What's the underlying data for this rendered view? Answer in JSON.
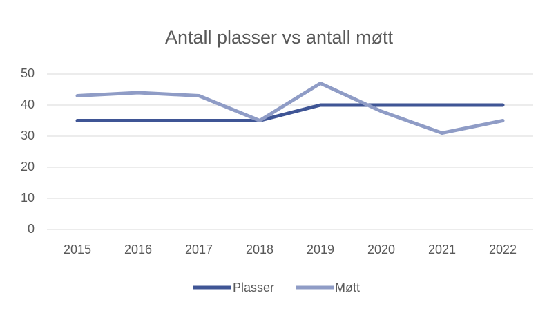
{
  "chart_data": {
    "type": "line",
    "title": "Antall plasser vs antall møtt",
    "categories": [
      "2015",
      "2016",
      "2017",
      "2018",
      "2019",
      "2020",
      "2021",
      "2022"
    ],
    "series": [
      {
        "name": "Plasser",
        "color": "#3f5595",
        "values": [
          35,
          35,
          35,
          35,
          40,
          40,
          40,
          40
        ]
      },
      {
        "name": "Møtt",
        "color": "#8f9cc6",
        "values": [
          43,
          44,
          43,
          35,
          47,
          38,
          31,
          35
        ]
      }
    ],
    "ylim": [
      0,
      50
    ],
    "yticks": [
      0,
      10,
      20,
      30,
      40,
      50
    ],
    "grid": true,
    "legend": "bottom"
  }
}
